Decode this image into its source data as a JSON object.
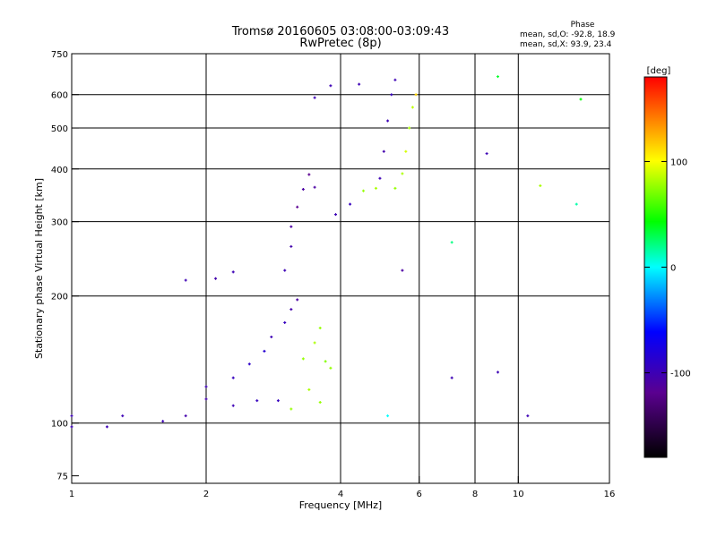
{
  "chart_data": {
    "type": "scatter",
    "title": "Tromsø 20160605 03:08:00-03:09:43",
    "subtitle": "RwPretec (8p)",
    "phase_legend": {
      "heading": "Phase",
      "line_o": "mean, sd,O: -92.8, 18.9",
      "line_x": "mean, sd,X:  93.9, 23.4"
    },
    "xlabel": "Frequency [MHz]",
    "ylabel": "Stationary phase Virtual Height [km]",
    "x_scale": "log",
    "y_scale": "log",
    "xlim": [
      1,
      16
    ],
    "ylim": [
      72,
      750
    ],
    "x_ticks": [
      1,
      2,
      4,
      6,
      10,
      16
    ],
    "x_tick_labels": [
      "1",
      "2",
      "4",
      "6",
      "10",
      "16"
    ],
    "x_minor_ticks": [
      8
    ],
    "x_minor_tick_labels": [
      "8"
    ],
    "x_grid": [
      2,
      4,
      6,
      8,
      10
    ],
    "y_ticks": [
      75,
      100,
      200,
      300,
      400,
      500,
      600,
      750
    ],
    "y_tick_labels": [
      "75",
      "100",
      "200",
      "300",
      "400",
      "500",
      "600",
      "750"
    ],
    "y_grid": [
      100,
      200,
      300,
      400,
      500,
      600
    ],
    "grid": true,
    "colorbar": {
      "label": "[deg]",
      "range": [
        -180,
        180
      ],
      "ticks": [
        100,
        0,
        -100
      ],
      "tick_labels": [
        "100",
        "0",
        "-100"
      ],
      "colors": [
        "#000000",
        "#5a0090",
        "#0000ff",
        "#00ffff",
        "#00ff00",
        "#ffff00",
        "#ff0000"
      ]
    },
    "series": [
      {
        "points": [
          [
            1.0,
            98
          ],
          [
            1.2,
            98
          ],
          [
            1.0,
            104
          ],
          [
            1.3,
            104
          ],
          [
            1.6,
            101
          ],
          [
            1.8,
            104
          ],
          [
            2.0,
            114
          ],
          [
            2.3,
            110
          ],
          [
            2.6,
            113
          ],
          [
            2.9,
            113
          ],
          [
            3.1,
            108
          ],
          [
            3.6,
            112
          ]
        ],
        "phase": [
          -100,
          -100,
          -100,
          -100,
          -100,
          -105,
          -105,
          -100,
          -95,
          -95,
          95,
          95
        ]
      },
      {
        "points": [
          [
            2.0,
            122
          ],
          [
            2.3,
            128
          ],
          [
            2.5,
            138
          ],
          [
            2.7,
            148
          ],
          [
            2.8,
            160
          ],
          [
            3.0,
            173
          ],
          [
            3.1,
            186
          ],
          [
            3.2,
            196
          ]
        ],
        "phase": [
          -100,
          -95,
          -90,
          -85,
          -100,
          -95,
          -105,
          -110
        ]
      },
      {
        "points": [
          [
            3.3,
            142
          ],
          [
            3.5,
            155
          ],
          [
            3.6,
            168
          ],
          [
            3.7,
            140
          ],
          [
            3.4,
            120
          ],
          [
            3.8,
            135
          ]
        ],
        "phase": [
          95,
          100,
          95,
          90,
          100,
          95
        ]
      },
      {
        "points": [
          [
            1.8,
            218
          ],
          [
            2.1,
            220
          ],
          [
            2.3,
            228
          ]
        ],
        "phase": [
          -100,
          -105,
          -100
        ]
      },
      {
        "points": [
          [
            3.0,
            230
          ],
          [
            3.1,
            262
          ],
          [
            3.1,
            292
          ],
          [
            3.2,
            325
          ],
          [
            3.3,
            358
          ],
          [
            3.4,
            388
          ],
          [
            3.5,
            362
          ]
        ],
        "phase": [
          -100,
          -105,
          -110,
          -120,
          -110,
          -120,
          -110
        ]
      },
      {
        "points": [
          [
            3.9,
            312
          ],
          [
            4.2,
            330
          ],
          [
            4.5,
            355
          ],
          [
            4.8,
            360
          ],
          [
            4.9,
            380
          ],
          [
            5.0,
            440
          ],
          [
            5.1,
            520
          ],
          [
            5.2,
            600
          ],
          [
            5.3,
            650
          ]
        ],
        "phase": [
          -100,
          -95,
          95,
          100,
          -100,
          -105,
          -100,
          -95,
          -100
        ]
      },
      {
        "points": [
          [
            5.3,
            360
          ],
          [
            5.5,
            390
          ],
          [
            5.6,
            440
          ],
          [
            5.7,
            500
          ],
          [
            5.8,
            560
          ],
          [
            5.9,
            600
          ]
        ],
        "phase": [
          95,
          100,
          110,
          100,
          105,
          130
        ]
      },
      {
        "points": [
          [
            3.5,
            590
          ],
          [
            3.8,
            630
          ],
          [
            4.4,
            635
          ]
        ],
        "phase": [
          -100,
          -100,
          -100
        ]
      },
      {
        "points": [
          [
            5.1,
            104
          ],
          [
            5.5,
            230
          ],
          [
            7.1,
            268
          ],
          [
            7.1,
            128
          ],
          [
            8.5,
            435
          ],
          [
            9.0,
            132
          ],
          [
            9.0,
            662
          ],
          [
            10.5,
            104
          ],
          [
            11.2,
            365
          ],
          [
            13.5,
            330
          ],
          [
            13.8,
            585
          ]
        ],
        "phase": [
          0,
          -110,
          30,
          -100,
          -100,
          -100,
          50,
          -100,
          100,
          20,
          60
        ]
      }
    ]
  }
}
